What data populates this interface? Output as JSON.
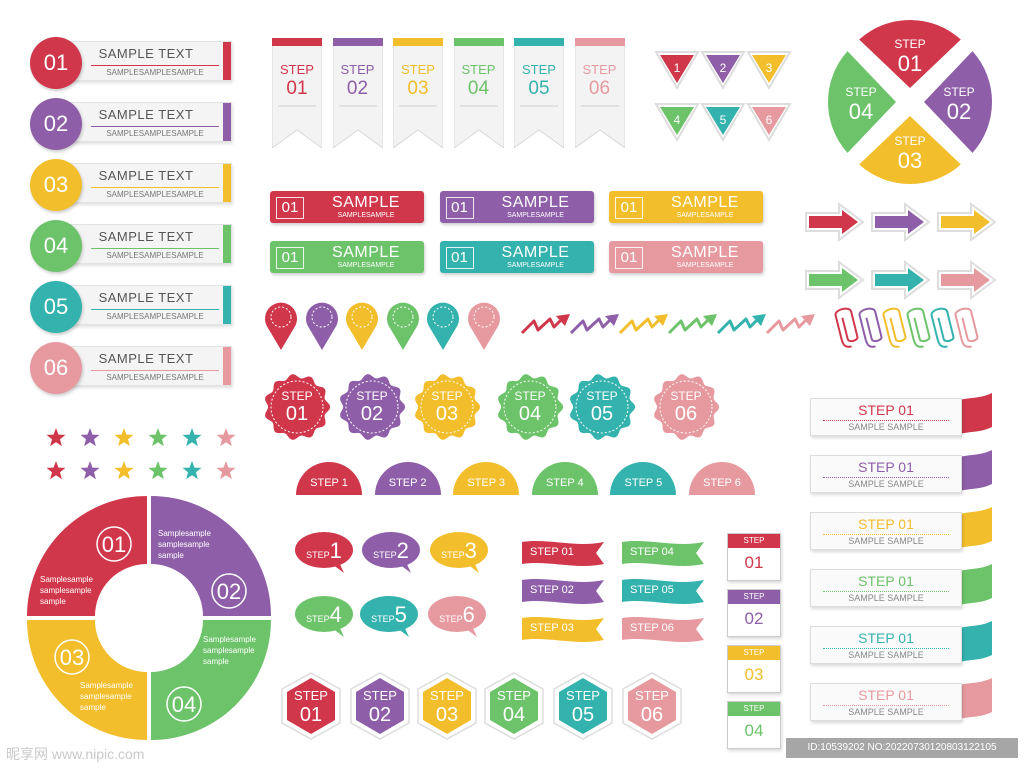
{
  "colors": [
    "#d0374b",
    "#8e5ea8",
    "#f2be2c",
    "#6cc36a",
    "#34b2ad",
    "#e69a9f"
  ],
  "labels": [
    {
      "num": "01",
      "title": "SAMPLE TEXT",
      "sub": "SAMPLESAMPLESAMPLE"
    },
    {
      "num": "02",
      "title": "SAMPLE TEXT",
      "sub": "SAMPLESAMPLESAMPLE"
    },
    {
      "num": "03",
      "title": "SAMPLE TEXT",
      "sub": "SAMPLESAMPLESAMPLE"
    },
    {
      "num": "04",
      "title": "SAMPLE TEXT",
      "sub": "SAMPLESAMPLESAMPLE"
    },
    {
      "num": "05",
      "title": "SAMPLE TEXT",
      "sub": "SAMPLESAMPLESAMPLE"
    },
    {
      "num": "06",
      "title": "SAMPLE TEXT",
      "sub": "SAMPLESAMPLESAMPLE"
    }
  ],
  "tags": [
    {
      "step": "STEP",
      "num": "01"
    },
    {
      "step": "STEP",
      "num": "02"
    },
    {
      "step": "STEP",
      "num": "03"
    },
    {
      "step": "STEP",
      "num": "04"
    },
    {
      "step": "STEP",
      "num": "05"
    },
    {
      "step": "STEP",
      "num": "06"
    }
  ],
  "triangles": [
    "1",
    "2",
    "3",
    "4",
    "5",
    "6"
  ],
  "pie": [
    {
      "step": "STEP",
      "num": "01"
    },
    {
      "step": "STEP",
      "num": "02"
    },
    {
      "step": "STEP",
      "num": "03"
    },
    {
      "step": "STEP",
      "num": "04"
    }
  ],
  "buttons": [
    {
      "num": "01",
      "title": "SAMPLE",
      "sub": "SAMPLESAMPLE"
    },
    {
      "num": "01",
      "title": "SAMPLE",
      "sub": "SAMPLESAMPLE"
    },
    {
      "num": "01",
      "title": "SAMPLE",
      "sub": "SAMPLESAMPLE"
    },
    {
      "num": "01",
      "title": "SAMPLE",
      "sub": "SAMPLESAMPLE"
    },
    {
      "num": "01",
      "title": "SAMPLE",
      "sub": "SAMPLESAMPLE"
    },
    {
      "num": "01",
      "title": "SAMPLE",
      "sub": "SAMPLESAMPLE"
    }
  ],
  "badges": [
    {
      "step": "STEP",
      "num": "01"
    },
    {
      "step": "STEP",
      "num": "02"
    },
    {
      "step": "STEP",
      "num": "03"
    },
    {
      "step": "STEP",
      "num": "04"
    },
    {
      "step": "STEP",
      "num": "05"
    },
    {
      "step": "STEP",
      "num": "06"
    }
  ],
  "semis": [
    "STEP 1",
    "STEP 2",
    "STEP 3",
    "STEP 4",
    "STEP 5",
    "STEP 6"
  ],
  "bubbles": [
    {
      "step": "STEP",
      "num": "1"
    },
    {
      "step": "STEP",
      "num": "2"
    },
    {
      "step": "STEP",
      "num": "3"
    },
    {
      "step": "STEP",
      "num": "4"
    },
    {
      "step": "STEP",
      "num": "5"
    },
    {
      "step": "STEP",
      "num": "6"
    }
  ],
  "flags": [
    "STEP 01",
    "STEP 02",
    "STEP 03",
    "STEP 04",
    "STEP 05",
    "STEP 06"
  ],
  "calendars": [
    {
      "step": "STEP",
      "num": "01"
    },
    {
      "step": "STEP",
      "num": "02"
    },
    {
      "step": "STEP",
      "num": "03"
    },
    {
      "step": "STEP",
      "num": "04"
    }
  ],
  "hexes": [
    {
      "step": "STEP",
      "num": "01"
    },
    {
      "step": "STEP",
      "num": "02"
    },
    {
      "step": "STEP",
      "num": "03"
    },
    {
      "step": "STEP",
      "num": "04"
    },
    {
      "step": "STEP",
      "num": "05"
    },
    {
      "step": "STEP",
      "num": "06"
    }
  ],
  "cards": [
    {
      "title": "STEP 01",
      "sub": "SAMPLE SAMPLE"
    },
    {
      "title": "STEP 01",
      "sub": "SAMPLE SAMPLE"
    },
    {
      "title": "STEP 01",
      "sub": "SAMPLE SAMPLE"
    },
    {
      "title": "STEP 01",
      "sub": "SAMPLE SAMPLE"
    },
    {
      "title": "STEP 01",
      "sub": "SAMPLE SAMPLE"
    },
    {
      "title": "STEP 01",
      "sub": "SAMPLE SAMPLE"
    }
  ],
  "ring": {
    "segments": [
      {
        "num": "01",
        "text": [
          "SAMPLESAMPLE",
          "SAMPLESAMPLE",
          "SAMPLE"
        ]
      },
      {
        "num": "02",
        "text": [
          "SAMPLESAMPLE",
          "SAMPLESAMPLE",
          "SAMPLE"
        ]
      },
      {
        "num": "03",
        "text": [
          "SAMPLESAMPLE",
          "SAMPLESAMPLE",
          "SAMPLE"
        ]
      },
      {
        "num": "04",
        "text": [
          "SAMPLESAMPLE",
          "SAMPLESAMPLE",
          "SAMPLE"
        ]
      }
    ],
    "side_texts": [
      [
        "Samplesample",
        "samplesample",
        "sample"
      ],
      [
        "Samplesample",
        "samplesample",
        "sample"
      ],
      [
        "Samplesample",
        "samplesample",
        "sample"
      ],
      [
        "Samplesample",
        "samplesample",
        "sample"
      ]
    ]
  },
  "watermark": {
    "logo": "昵享网 www.nipic.com",
    "id": "ID:10539202 NO:20220730120803122105"
  }
}
